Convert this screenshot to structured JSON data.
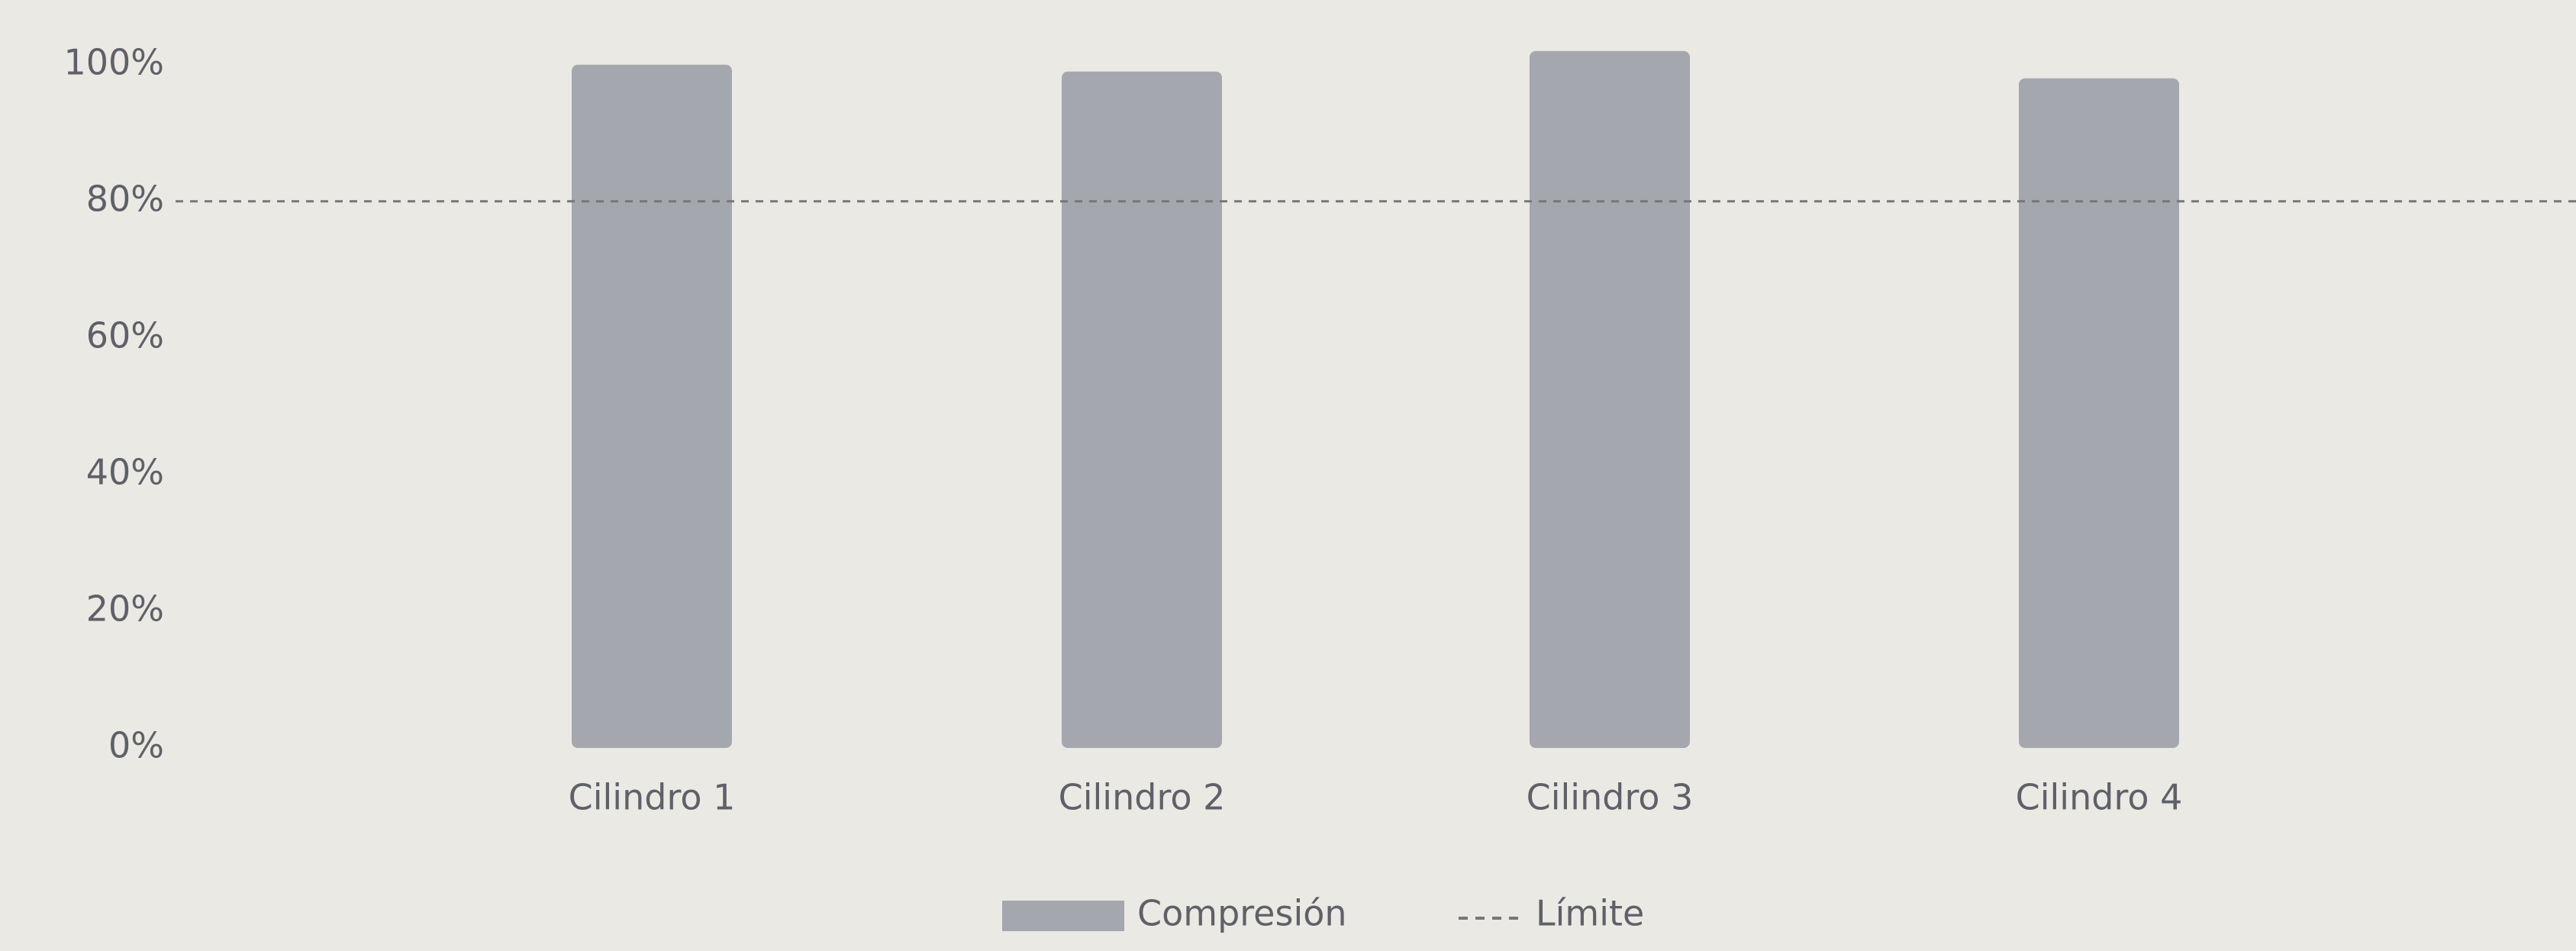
{
  "chart_data": {
    "type": "bar",
    "categories": [
      "Cilindro 1",
      "Cilindro 2",
      "Cilindro 3",
      "Cilindro 4"
    ],
    "series": [
      {
        "name": "Compresión",
        "color": "#a4a7ae",
        "values": [
          100,
          99,
          102,
          98
        ]
      }
    ],
    "limit": {
      "name": "Límite",
      "value": 80,
      "color": "#777777"
    },
    "ylim": [
      0,
      105
    ],
    "yticks": [
      {
        "value": 0,
        "label": "0%"
      },
      {
        "value": 20,
        "label": "20%"
      },
      {
        "value": 40,
        "label": "40%"
      },
      {
        "value": 60,
        "label": "60%"
      },
      {
        "value": 80,
        "label": "80%"
      },
      {
        "value": 100,
        "label": "100%"
      }
    ],
    "legend": "bottom"
  }
}
